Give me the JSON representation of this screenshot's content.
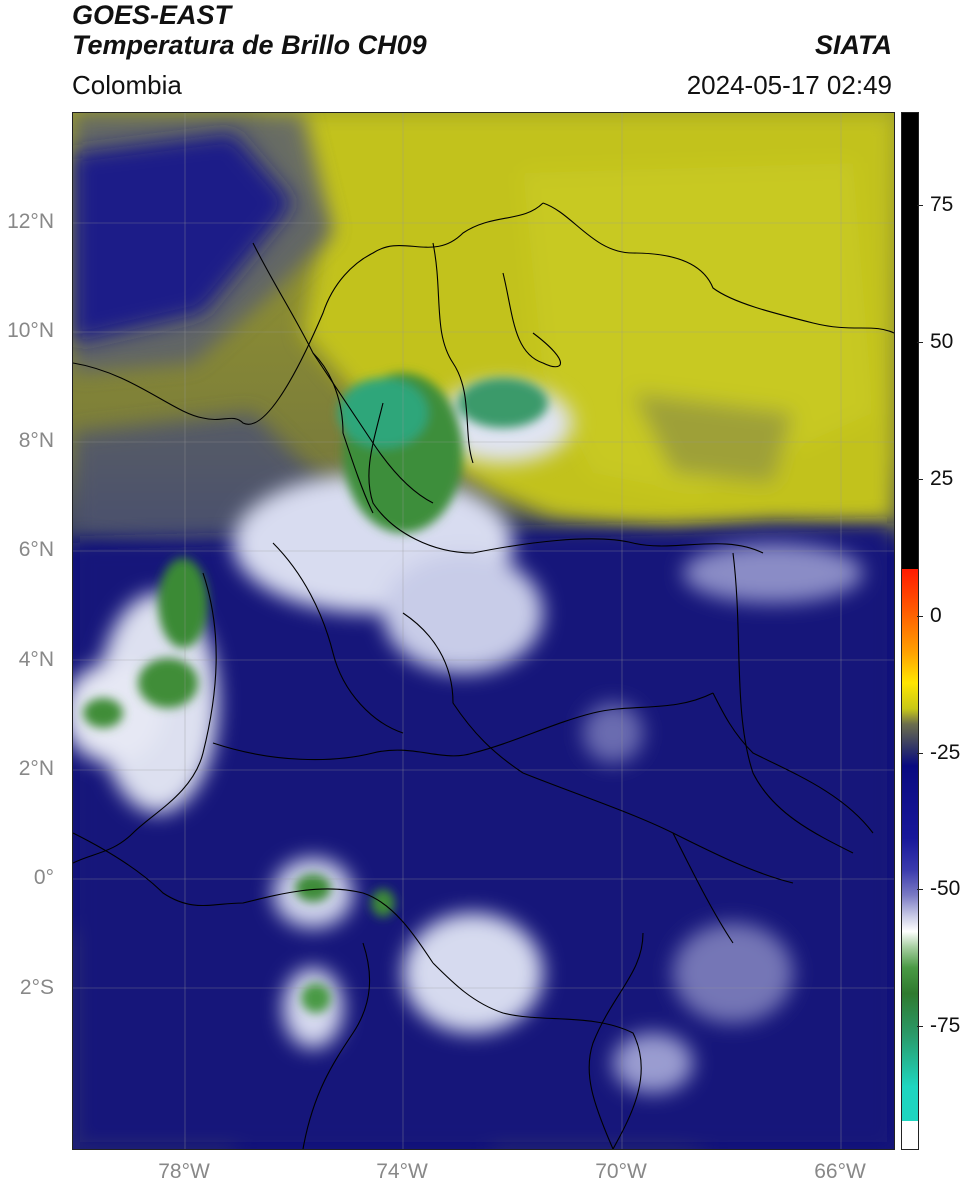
{
  "header": {
    "satellite": "GOES-EAST",
    "product": "Temperatura de Brillo CH09",
    "organization": "SIATA",
    "region": "Colombia",
    "datetime": "2024-05-17 02:49"
  },
  "axes": {
    "lat_labels": [
      "12°N",
      "10°N",
      "8°N",
      "6°N",
      "4°N",
      "2°N",
      "0°",
      "2°S"
    ],
    "lon_labels": [
      "78°W",
      "74°W",
      "70°W",
      "66°W"
    ]
  },
  "colorbar": {
    "tick_labels": [
      "75",
      "50",
      "25",
      "0",
      "-25",
      "-50",
      "-75"
    ],
    "range": [
      -95,
      90
    ]
  },
  "colors": {
    "dry_high": "#c4c418",
    "mid": "#4a4f68",
    "cold": "#0d0d80",
    "very_cold": "#ffffff",
    "coldest": "#2f8a2f",
    "extreme": "#1ed6c0"
  }
}
